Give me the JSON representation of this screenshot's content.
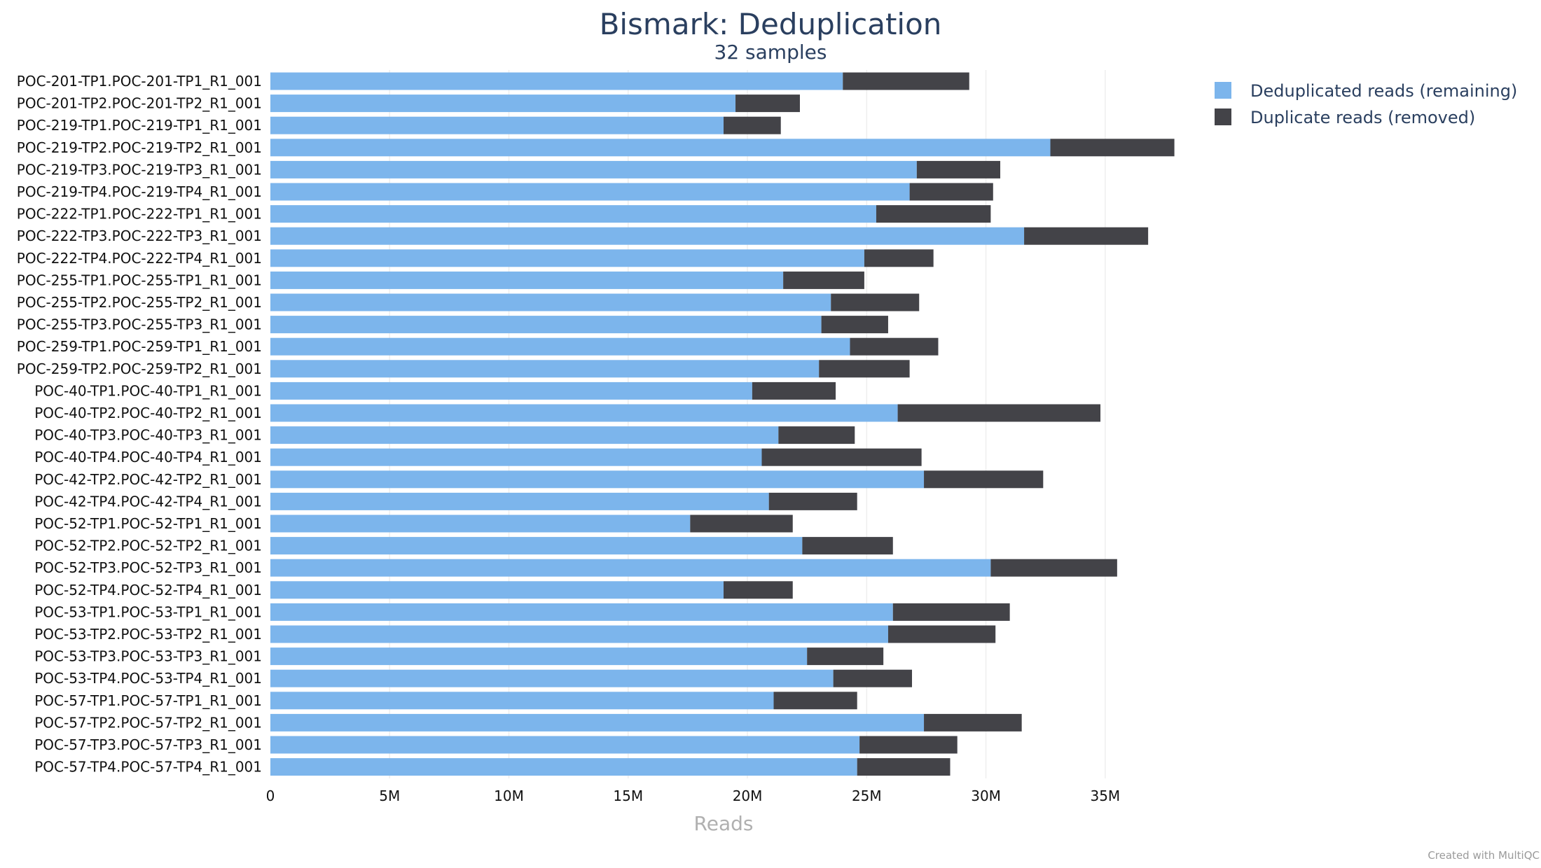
{
  "chart_data": {
    "type": "bar",
    "orientation": "horizontal",
    "stacked": true,
    "title": "Bismark: Deduplication",
    "subtitle": "32 samples",
    "xlabel": "Reads",
    "ylabel": "",
    "xlim": [
      0,
      38000000
    ],
    "x_ticks": [
      {
        "value": 0,
        "label": "0"
      },
      {
        "value": 5000000,
        "label": "5M"
      },
      {
        "value": 10000000,
        "label": "10M"
      },
      {
        "value": 15000000,
        "label": "15M"
      },
      {
        "value": 20000000,
        "label": "20M"
      },
      {
        "value": 25000000,
        "label": "25M"
      },
      {
        "value": 30000000,
        "label": "30M"
      },
      {
        "value": 35000000,
        "label": "35M"
      }
    ],
    "grid": true,
    "legend_position": "top-right",
    "categories": [
      "POC-201-TP1.POC-201-TP1_R1_001",
      "POC-201-TP2.POC-201-TP2_R1_001",
      "POC-219-TP1.POC-219-TP1_R1_001",
      "POC-219-TP2.POC-219-TP2_R1_001",
      "POC-219-TP3.POC-219-TP3_R1_001",
      "POC-219-TP4.POC-219-TP4_R1_001",
      "POC-222-TP1.POC-222-TP1_R1_001",
      "POC-222-TP3.POC-222-TP3_R1_001",
      "POC-222-TP4.POC-222-TP4_R1_001",
      "POC-255-TP1.POC-255-TP1_R1_001",
      "POC-255-TP2.POC-255-TP2_R1_001",
      "POC-255-TP3.POC-255-TP3_R1_001",
      "POC-259-TP1.POC-259-TP1_R1_001",
      "POC-259-TP2.POC-259-TP2_R1_001",
      "POC-40-TP1.POC-40-TP1_R1_001",
      "POC-40-TP2.POC-40-TP2_R1_001",
      "POC-40-TP3.POC-40-TP3_R1_001",
      "POC-40-TP4.POC-40-TP4_R1_001",
      "POC-42-TP2.POC-42-TP2_R1_001",
      "POC-42-TP4.POC-42-TP4_R1_001",
      "POC-52-TP1.POC-52-TP1_R1_001",
      "POC-52-TP2.POC-52-TP2_R1_001",
      "POC-52-TP3.POC-52-TP3_R1_001",
      "POC-52-TP4.POC-52-TP4_R1_001",
      "POC-53-TP1.POC-53-TP1_R1_001",
      "POC-53-TP2.POC-53-TP2_R1_001",
      "POC-53-TP3.POC-53-TP3_R1_001",
      "POC-53-TP4.POC-53-TP4_R1_001",
      "POC-57-TP1.POC-57-TP1_R1_001",
      "POC-57-TP2.POC-57-TP2_R1_001",
      "POC-57-TP3.POC-57-TP3_R1_001",
      "POC-57-TP4.POC-57-TP4_R1_001"
    ],
    "series": [
      {
        "name": "Deduplicated reads (remaining)",
        "color": "#7cb5ec",
        "values": [
          24000000,
          19500000,
          19000000,
          32700000,
          27100000,
          26800000,
          25400000,
          31600000,
          24900000,
          21500000,
          23500000,
          23100000,
          24300000,
          23000000,
          20200000,
          26300000,
          21300000,
          20600000,
          27400000,
          20900000,
          17600000,
          22300000,
          30200000,
          19000000,
          26100000,
          25900000,
          22500000,
          23600000,
          21100000,
          27400000,
          24700000,
          24600000
        ]
      },
      {
        "name": "Duplicate reads (removed)",
        "color": "#434348",
        "values": [
          5300000,
          2700000,
          2400000,
          5200000,
          3500000,
          3500000,
          4800000,
          5200000,
          2900000,
          3400000,
          3700000,
          2800000,
          3700000,
          3800000,
          3500000,
          8500000,
          3200000,
          6700000,
          5000000,
          3700000,
          4300000,
          3800000,
          5300000,
          2900000,
          4900000,
          4500000,
          3200000,
          3300000,
          3500000,
          4100000,
          4100000,
          3900000
        ]
      }
    ]
  },
  "footer": {
    "credit": "Created with MultiQC"
  }
}
